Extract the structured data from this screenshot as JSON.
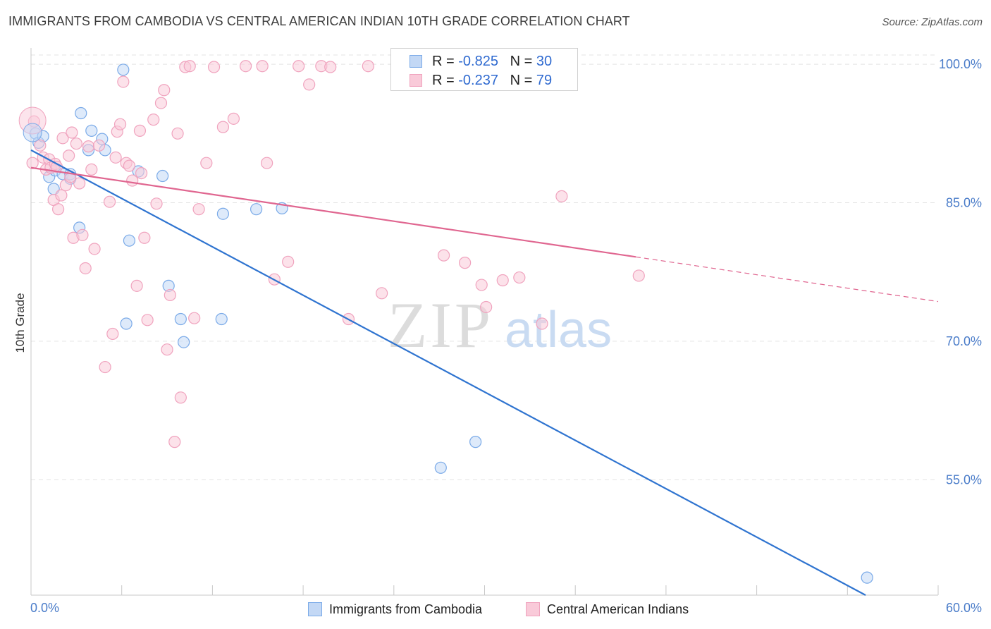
{
  "chart_data": {
    "type": "scatter",
    "title": "IMMIGRANTS FROM CAMBODIA VS CENTRAL AMERICAN INDIAN 10TH GRADE CORRELATION CHART",
    "source": "Source: ZipAtlas.com",
    "xlabel": "",
    "ylabel": "10th Grade",
    "xlim": [
      0,
      60
    ],
    "ylim": [
      42.5,
      101
    ],
    "x_tick_labels": {
      "min": "0.0%",
      "max": "60.0%"
    },
    "y_ticks": [
      {
        "value": 100,
        "label": "100.0%"
      },
      {
        "value": 85,
        "label": "85.0%"
      },
      {
        "value": 70,
        "label": "70.0%"
      },
      {
        "value": 55,
        "label": "55.0%"
      }
    ],
    "grid": true,
    "watermark": {
      "text1": "ZIP",
      "text2": "atlas"
    },
    "legend_box": [
      {
        "r_label": "R = ",
        "r_value": "-0.825",
        "n_label": "N = ",
        "n_value": "30"
      },
      {
        "r_label": "R = ",
        "r_value": "-0.237",
        "n_label": "N = ",
        "n_value": "79"
      }
    ],
    "series": [
      {
        "name": "Immigrants from Cambodia",
        "color": "#7aaae8",
        "fill": "#c3d8f5",
        "line_color": "#2f74d0",
        "trend": {
          "x0": 0,
          "y0": 90.7,
          "x1": 55.2,
          "y1": 42.5,
          "dashed_from": null
        },
        "points": [
          [
            0.3,
            92.5
          ],
          [
            0.5,
            91.5
          ],
          [
            0.8,
            92.2
          ],
          [
            1.2,
            87.8
          ],
          [
            1.5,
            86.5
          ],
          [
            1.6,
            88.5
          ],
          [
            2.1,
            88.1
          ],
          [
            2.6,
            88.1
          ],
          [
            2.6,
            87.6
          ],
          [
            3.2,
            82.3
          ],
          [
            3.3,
            94.7
          ],
          [
            3.8,
            90.7
          ],
          [
            4.0,
            92.8
          ],
          [
            4.7,
            91.9
          ],
          [
            4.9,
            90.7
          ],
          [
            6.1,
            99.4
          ],
          [
            6.3,
            71.9
          ],
          [
            6.5,
            80.9
          ],
          [
            7.1,
            88.4
          ],
          [
            8.7,
            87.9
          ],
          [
            9.1,
            76.0
          ],
          [
            9.9,
            72.4
          ],
          [
            10.1,
            69.9
          ],
          [
            12.6,
            72.4
          ],
          [
            12.7,
            83.8
          ],
          [
            14.9,
            84.3
          ],
          [
            16.6,
            84.4
          ],
          [
            27.1,
            56.3
          ],
          [
            29.4,
            59.1
          ],
          [
            55.3,
            44.4
          ]
        ]
      },
      {
        "name": "Central American Indians",
        "color": "#f0a3be",
        "fill": "#f9cad9",
        "line_color": "#e06690",
        "trend": {
          "x0": 0,
          "y0": 88.8,
          "x1": 60,
          "y1": 74.3,
          "dashed_from": 40.0
        },
        "points": [
          [
            0.2,
            93.8
          ],
          [
            0.6,
            91.2
          ],
          [
            0.8,
            89.9
          ],
          [
            1.0,
            88.6
          ],
          [
            1.2,
            89.7
          ],
          [
            1.3,
            88.8
          ],
          [
            1.5,
            85.3
          ],
          [
            1.6,
            89.2
          ],
          [
            1.7,
            88.9
          ],
          [
            1.8,
            84.3
          ],
          [
            2.0,
            85.8
          ],
          [
            2.1,
            92.0
          ],
          [
            2.3,
            86.9
          ],
          [
            2.5,
            90.1
          ],
          [
            2.6,
            87.8
          ],
          [
            2.7,
            92.6
          ],
          [
            2.8,
            81.2
          ],
          [
            3.0,
            91.4
          ],
          [
            3.2,
            87.1
          ],
          [
            3.4,
            81.5
          ],
          [
            3.6,
            77.9
          ],
          [
            3.8,
            91.1
          ],
          [
            4.0,
            88.6
          ],
          [
            4.2,
            80.0
          ],
          [
            4.5,
            91.2
          ],
          [
            4.9,
            67.2
          ],
          [
            5.2,
            85.1
          ],
          [
            5.4,
            70.8
          ],
          [
            5.6,
            89.9
          ],
          [
            5.7,
            92.7
          ],
          [
            5.9,
            93.5
          ],
          [
            6.1,
            98.1
          ],
          [
            6.3,
            89.3
          ],
          [
            6.5,
            89.0
          ],
          [
            6.7,
            87.4
          ],
          [
            7.0,
            76.0
          ],
          [
            7.2,
            92.8
          ],
          [
            7.3,
            88.2
          ],
          [
            7.5,
            81.2
          ],
          [
            7.7,
            72.3
          ],
          [
            8.1,
            94.0
          ],
          [
            8.3,
            84.9
          ],
          [
            8.6,
            95.8
          ],
          [
            8.8,
            97.2
          ],
          [
            9.0,
            69.1
          ],
          [
            9.2,
            75.0
          ],
          [
            9.5,
            59.1
          ],
          [
            9.7,
            92.5
          ],
          [
            9.9,
            63.9
          ],
          [
            10.2,
            99.7
          ],
          [
            10.5,
            99.8
          ],
          [
            10.8,
            72.5
          ],
          [
            11.1,
            84.3
          ],
          [
            11.6,
            89.3
          ],
          [
            12.1,
            99.7
          ],
          [
            12.7,
            93.2
          ],
          [
            13.4,
            94.1
          ],
          [
            14.2,
            99.8
          ],
          [
            15.3,
            99.8
          ],
          [
            15.6,
            89.3
          ],
          [
            16.1,
            76.7
          ],
          [
            17.0,
            78.6
          ],
          [
            17.7,
            99.8
          ],
          [
            18.4,
            97.8
          ],
          [
            19.2,
            99.8
          ],
          [
            19.8,
            99.7
          ],
          [
            21.0,
            72.4
          ],
          [
            22.3,
            99.8
          ],
          [
            23.2,
            75.2
          ],
          [
            27.3,
            79.3
          ],
          [
            28.7,
            78.5
          ],
          [
            29.8,
            76.1
          ],
          [
            30.1,
            73.7
          ],
          [
            31.2,
            76.6
          ],
          [
            32.3,
            76.9
          ],
          [
            33.8,
            71.9
          ],
          [
            35.1,
            85.7
          ],
          [
            40.2,
            77.1
          ],
          [
            0.1,
            89.3
          ]
        ]
      }
    ]
  }
}
